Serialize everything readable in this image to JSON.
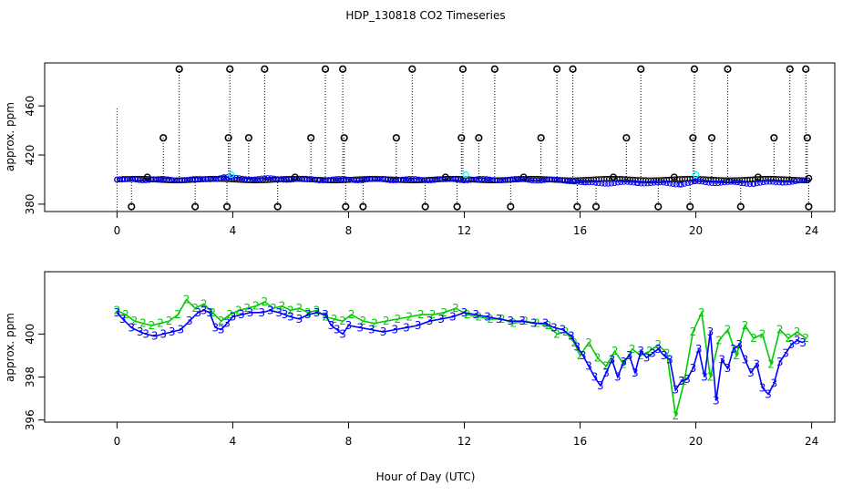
{
  "chart_data": {
    "title": "HDP_130818  CO2 Timeseries",
    "xlabel": "Hour of Day (UTC)",
    "colors": {
      "black": "#000000",
      "blue": "#0000ff",
      "green": "#00cc00",
      "cyan": "#00ffff"
    },
    "panels": [
      {
        "type": "scatter",
        "ylabel": "approx. ppm",
        "xlim": [
          -2.5,
          24.8
        ],
        "ylim": [
          374,
          495
        ],
        "xticks": [
          "0",
          "4",
          "8",
          "12",
          "16",
          "20",
          "24"
        ],
        "yticks": [
          "380",
          "420",
          "460"
        ],
        "series": [
          {
            "style": "black-circles-dotted-drops",
            "baseline": 400,
            "spikes_high": [
              [
                2.15,
                490
              ],
              [
                3.9,
                490
              ],
              [
                5.1,
                490
              ],
              [
                7.2,
                490
              ],
              [
                7.8,
                490
              ],
              [
                10.2,
                490
              ],
              [
                11.95,
                490
              ],
              [
                13.05,
                490
              ],
              [
                15.2,
                490
              ],
              [
                15.75,
                490
              ],
              [
                18.1,
                490
              ],
              [
                19.95,
                490
              ],
              [
                21.1,
                490
              ],
              [
                23.25,
                490
              ],
              [
                23.8,
                490
              ]
            ],
            "spikes_mid": [
              [
                1.6,
                434
              ],
              [
                3.85,
                434
              ],
              [
                4.55,
                434
              ],
              [
                6.7,
                434
              ],
              [
                7.85,
                434
              ],
              [
                9.65,
                434
              ],
              [
                11.9,
                434
              ],
              [
                12.5,
                434
              ],
              [
                14.65,
                434
              ],
              [
                17.6,
                434
              ],
              [
                19.9,
                434
              ],
              [
                20.55,
                434
              ],
              [
                22.7,
                434
              ],
              [
                23.85,
                434
              ]
            ],
            "spikes_low": [
              [
                0.5,
                378
              ],
              [
                2.7,
                378
              ],
              [
                3.8,
                378
              ],
              [
                5.55,
                378
              ],
              [
                7.9,
                378
              ],
              [
                8.5,
                378
              ],
              [
                10.65,
                378
              ],
              [
                11.75,
                378
              ],
              [
                13.6,
                378
              ],
              [
                15.9,
                378
              ],
              [
                16.55,
                378
              ],
              [
                18.7,
                378
              ],
              [
                19.8,
                378
              ],
              [
                21.55,
                378
              ],
              [
                23.9,
                378
              ]
            ],
            "blips": [
              [
                1.05,
                402
              ],
              [
                6.15,
                402
              ],
              [
                11.35,
                402
              ],
              [
                14.05,
                402
              ],
              [
                17.15,
                402
              ],
              [
                19.25,
                402
              ],
              [
                22.15,
                402
              ],
              [
                23.9,
                401
              ]
            ]
          },
          {
            "style": "blue-circles",
            "points": [
              [
                0,
                400
              ],
              [
                3,
                400
              ],
              [
                3.7,
                402
              ],
              [
                4,
                401
              ],
              [
                7,
                400
              ],
              [
                8,
                400
              ],
              [
                12,
                400
              ],
              [
                14,
                400
              ],
              [
                15.8,
                399
              ],
              [
                16.2,
                397
              ],
              [
                18,
                397.5
              ],
              [
                19.5,
                396.5
              ],
              [
                20,
                398
              ],
              [
                22,
                397
              ],
              [
                23,
                398
              ],
              [
                23.9,
                399
              ]
            ]
          },
          {
            "style": "cyan-marks",
            "points": [
              [
                3.95,
                404
              ],
              [
                12.05,
                404
              ],
              [
                20.0,
                404
              ]
            ]
          }
        ]
      },
      {
        "type": "line",
        "ylabel": "approx. ppm",
        "xlim": [
          -2.5,
          24.8
        ],
        "ylim": [
          395.9,
          402.9
        ],
        "xticks": [
          "0",
          "4",
          "8",
          "12",
          "16",
          "20",
          "24"
        ],
        "yticks": [
          "396",
          "398",
          "400"
        ],
        "series": [
          {
            "name": "3",
            "color": "blue",
            "x": [
              0,
              0.2,
              0.5,
              0.8,
              1.0,
              1.3,
              1.6,
              1.9,
              2.2,
              2.5,
              2.8,
              3.0,
              3.2,
              3.4,
              3.6,
              3.8,
              4.0,
              4.3,
              4.6,
              5.0,
              5.3,
              5.6,
              5.8,
              6.0,
              6.3,
              6.6,
              6.9,
              7.2,
              7.4,
              7.6,
              7.8,
              8.0,
              8.4,
              8.8,
              9.2,
              9.6,
              10.0,
              10.4,
              10.8,
              11.2,
              11.6,
              12.0,
              12.4,
              12.8,
              13.2,
              13.6,
              14.0,
              14.4,
              14.8,
              15.1,
              15.4,
              15.7,
              15.9,
              16.1,
              16.3,
              16.5,
              16.7,
              16.9,
              17.1,
              17.3,
              17.5,
              17.7,
              17.9,
              18.1,
              18.3,
              18.5,
              18.7,
              18.9,
              19.1,
              19.3,
              19.5,
              19.7,
              19.9,
              20.1,
              20.3,
              20.5,
              20.7,
              20.9,
              21.1,
              21.3,
              21.5,
              21.7,
              21.9,
              22.1,
              22.3,
              22.5,
              22.7,
              22.9,
              23.1,
              23.3,
              23.5,
              23.7
            ],
            "values": [
              401.0,
              400.7,
              400.3,
              400.1,
              400.0,
              399.9,
              400.0,
              400.1,
              400.2,
              400.6,
              401.0,
              401.1,
              401.0,
              400.3,
              400.2,
              400.5,
              400.8,
              400.9,
              401.0,
              401.0,
              401.1,
              401.0,
              400.9,
              400.8,
              400.7,
              400.9,
              401.0,
              400.9,
              400.4,
              400.2,
              400.0,
              400.4,
              400.3,
              400.2,
              400.1,
              400.2,
              400.3,
              400.4,
              400.6,
              400.7,
              400.8,
              401.0,
              400.9,
              400.8,
              400.7,
              400.6,
              400.6,
              400.5,
              400.5,
              400.3,
              400.2,
              399.9,
              399.4,
              399.0,
              398.5,
              398.0,
              397.6,
              398.2,
              398.8,
              398.0,
              398.7,
              399.0,
              398.2,
              399.2,
              398.9,
              399.1,
              399.3,
              399.0,
              398.8,
              397.4,
              397.8,
              397.9,
              398.4,
              399.3,
              398.0,
              400.1,
              396.9,
              398.8,
              398.4,
              399.3,
              399.5,
              398.8,
              398.2,
              398.6,
              397.5,
              397.2,
              397.7,
              398.7,
              399.1,
              399.5,
              399.7,
              399.6
            ]
          },
          {
            "name": "2",
            "color": "green",
            "x": [
              0,
              0.3,
              0.6,
              0.9,
              1.2,
              1.5,
              1.8,
              2.1,
              2.4,
              2.7,
              3.0,
              3.3,
              3.6,
              3.9,
              4.2,
              4.5,
              4.8,
              5.1,
              5.4,
              5.7,
              6.0,
              6.3,
              6.6,
              6.9,
              7.2,
              7.5,
              7.8,
              8.1,
              8.5,
              8.9,
              9.3,
              9.7,
              10.1,
              10.5,
              10.9,
              11.3,
              11.7,
              12.1,
              12.5,
              12.9,
              13.3,
              13.7,
              14.1,
              14.5,
              14.9,
              15.2,
              15.5,
              15.8,
              16.0,
              16.3,
              16.6,
              16.9,
              17.2,
              17.5,
              17.8,
              18.1,
              18.4,
              18.7,
              19.0,
              19.3,
              19.6,
              19.9,
              20.2,
              20.5,
              20.8,
              21.1,
              21.4,
              21.7,
              22.0,
              22.3,
              22.6,
              22.9,
              23.2,
              23.5,
              23.8
            ],
            "values": [
              401.1,
              400.9,
              400.6,
              400.5,
              400.4,
              400.5,
              400.6,
              400.9,
              401.6,
              401.2,
              401.4,
              401.0,
              400.6,
              400.9,
              401.1,
              401.2,
              401.3,
              401.5,
              401.2,
              401.3,
              401.1,
              401.2,
              401.0,
              401.1,
              400.8,
              400.7,
              400.6,
              400.9,
              400.6,
              400.5,
              400.6,
              400.7,
              400.8,
              400.9,
              400.9,
              401.0,
              401.2,
              400.9,
              400.8,
              400.7,
              400.7,
              400.5,
              400.6,
              400.5,
              400.4,
              400.0,
              400.1,
              399.6,
              399.0,
              399.6,
              398.9,
              398.5,
              399.2,
              398.6,
              399.3,
              399.0,
              399.2,
              399.5,
              399.1,
              396.2,
              397.8,
              400.1,
              401.0,
              398.0,
              399.7,
              400.2,
              399.0,
              400.4,
              399.8,
              400.0,
              398.6,
              400.2,
              399.8,
              400.1,
              399.8
            ]
          }
        ]
      }
    ]
  }
}
